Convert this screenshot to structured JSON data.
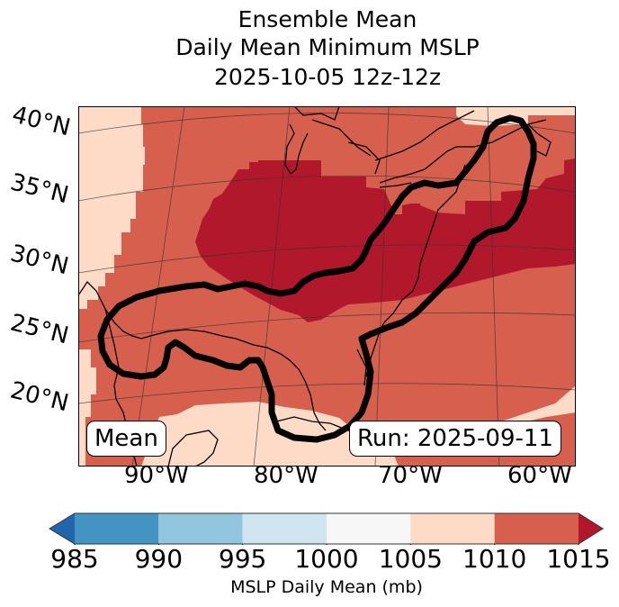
{
  "title": {
    "line1": "Ensemble Mean",
    "line2": "Daily Mean Minimum MSLP",
    "line3": "2025-10-05 12z-12z"
  },
  "map": {
    "projection": "lambert-conformal",
    "lat_labels": [
      "40°N",
      "35°N",
      "30°N",
      "25°N",
      "20°N"
    ],
    "lon_labels": [
      "90°W",
      "80°W",
      "70°W",
      "60°W"
    ],
    "inset_left": "Mean",
    "inset_right": "Run: 2025-09-11",
    "fields": [
      {
        "name": "1005-1010 mb",
        "color": "#fddbc7",
        "regions": [
          "far west / south-west Gulf interior",
          "north-east corner over Atlantic Canada",
          "south-east corner Atlantic"
        ]
      },
      {
        "name": "1010-1015 mb",
        "color": "#d6604d",
        "regions": [
          "Gulf of Mexico",
          "central Plains",
          "western Atlantic"
        ]
      },
      {
        "name": ">1015 mb",
        "color": "#b2182b",
        "regions": [
          "Ohio Valley",
          "Mid-Atlantic",
          "western Atlantic band 30-38°N"
        ]
      }
    ],
    "contour": {
      "label": "bold black probability contour",
      "color": "#000000",
      "description": "outline enclosing Gulf of Mexico and extending north-east along US East Coast to Nova Scotia"
    }
  },
  "chart_data": {
    "type": "heatmap",
    "title": "Ensemble Mean Daily Mean Minimum MSLP 2025-10-05 12z-12z",
    "colorbar": {
      "label": "MSLP Daily Mean (mb)",
      "ticks": [
        985,
        990,
        995,
        1000,
        1005,
        1010,
        1015
      ],
      "bins": [
        {
          "range": "<985",
          "color": "#2166ac"
        },
        {
          "range": [
            985,
            990
          ],
          "color": "#4393c3"
        },
        {
          "range": [
            990,
            995
          ],
          "color": "#92c5de"
        },
        {
          "range": [
            995,
            1000
          ],
          "color": "#d1e5f0"
        },
        {
          "range": [
            1000,
            1005
          ],
          "color": "#f7f7f7"
        },
        {
          "range": [
            1005,
            1010
          ],
          "color": "#fddbc7"
        },
        {
          "range": [
            1010,
            1015
          ],
          "color": "#d6604d"
        },
        {
          "range": ">1015",
          "color": "#b2182b"
        }
      ],
      "extend": "both"
    },
    "xlabel": "",
    "ylabel": "",
    "x_ticks": [
      "90°W",
      "80°W",
      "70°W",
      "60°W"
    ],
    "y_ticks": [
      "20°N",
      "25°N",
      "30°N",
      "35°N",
      "40°N"
    ],
    "lon_range": [
      -97,
      -58
    ],
    "lat_range": [
      15,
      42
    ],
    "annotations": [
      "Mean",
      "Run: 2025-09-11"
    ]
  }
}
